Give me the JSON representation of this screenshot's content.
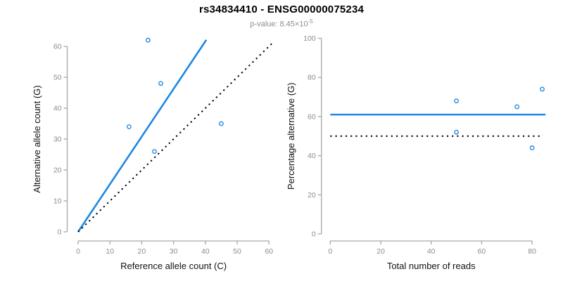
{
  "header": {
    "title": "rs34834410 - ENSG00000075234",
    "pvalue_prefix": "p-value: 8.45×10",
    "pvalue_exponent": "-5"
  },
  "colors": {
    "accent_blue": "#1E88E5",
    "reference_black": "#000000",
    "axis_line": "#a6a6a6",
    "tick_label": "#8c8c8c",
    "axis_title": "#111111",
    "subtitle": "#8c8c8c",
    "title": "#000000",
    "background": "#ffffff"
  },
  "chart_data": [
    {
      "id": "allele-counts",
      "type": "scatter",
      "title": "",
      "xlabel": "Reference allele count (C)",
      "ylabel": "Alternative allele count (G)",
      "xlim": [
        0,
        62
      ],
      "ylim": [
        0,
        62
      ],
      "xticks": [
        0,
        10,
        20,
        30,
        40,
        50,
        60
      ],
      "yticks": [
        0,
        10,
        20,
        30,
        40,
        50,
        60
      ],
      "grid": false,
      "legend": "none",
      "point_color": "accent_blue",
      "points": [
        [
          22,
          62
        ],
        [
          26,
          48
        ],
        [
          16,
          34
        ],
        [
          45,
          35
        ],
        [
          24,
          26
        ]
      ],
      "lines": [
        {
          "name": "regression-fit-line",
          "style": "solid",
          "color": "accent_blue",
          "slope": 1.54,
          "intercept": 0,
          "from": [
            0,
            0
          ],
          "to": [
            40.3,
            62.1
          ]
        },
        {
          "name": "identity-line",
          "style": "dotted",
          "color": "reference_black",
          "slope": 1,
          "intercept": 0,
          "from": [
            0,
            0
          ],
          "to": [
            61.5,
            61.5
          ]
        }
      ]
    },
    {
      "id": "percentage-vs-reads",
      "type": "scatter",
      "title": "",
      "xlabel": "Total number of reads",
      "ylabel": "Percentage alternative (G)",
      "xlim": [
        0,
        86
      ],
      "ylim": [
        0,
        100
      ],
      "xticks": [
        0,
        20,
        40,
        60,
        80
      ],
      "yticks": [
        0,
        20,
        40,
        60,
        80,
        100
      ],
      "grid": false,
      "legend": "none",
      "point_color": "accent_blue",
      "points": [
        [
          50,
          68
        ],
        [
          50,
          52
        ],
        [
          74,
          65
        ],
        [
          80,
          44
        ],
        [
          84,
          74
        ]
      ],
      "lines": [
        {
          "name": "estimated-percentage-line",
          "style": "solid",
          "color": "accent_blue",
          "y": 61,
          "from": [
            0,
            61
          ],
          "to": [
            85.3,
            61
          ]
        },
        {
          "name": "null-50-percent-line",
          "style": "dotted",
          "color": "reference_black",
          "y": 50,
          "from": [
            0,
            50
          ],
          "to": [
            83,
            50
          ]
        }
      ]
    }
  ]
}
